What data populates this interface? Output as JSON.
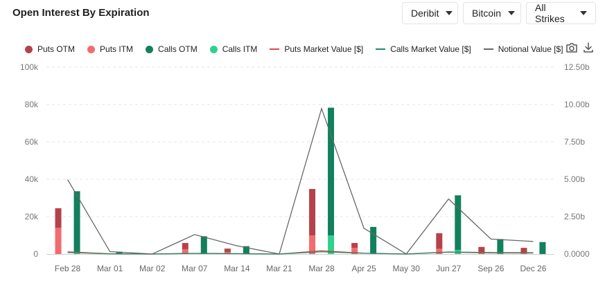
{
  "header": {
    "title": "Open Interest By Expiration",
    "exchange": "Deribit",
    "asset": "Bitcoin",
    "strikes": "All Strikes"
  },
  "toolbar": {
    "camera_icon": "camera-icon",
    "download_icon": "download-icon"
  },
  "colors": {
    "puts_otm": "#b5424b",
    "puts_itm": "#f36b6e",
    "calls_otm": "#12805c",
    "calls_itm": "#2fd18f",
    "puts_mv": "#d94a4a",
    "calls_mv": "#1f8a66",
    "notional": "#666666"
  },
  "legend": {
    "puts_otm": "Puts OTM",
    "puts_itm": "Puts ITM",
    "calls_otm": "Calls OTM",
    "calls_itm": "Calls ITM",
    "puts_mv": "Puts Market Value [$]",
    "calls_mv": "Calls Market Value [$]",
    "notional": "Notional Value [$]"
  },
  "chart_data": {
    "type": "bar",
    "categories": [
      "Feb 28",
      "Mar 01",
      "Mar 02",
      "Mar 07",
      "Mar 14",
      "Mar 21",
      "Mar 28",
      "Apr 25",
      "May 30",
      "Jun 27",
      "Sep 26",
      "Dec 26"
    ],
    "series": [
      {
        "name": "Puts OTM",
        "stack": "puts",
        "values": [
          10500,
          300,
          0,
          3300,
          1900,
          0,
          24800,
          2600,
          0,
          8300,
          2700,
          2500
        ]
      },
      {
        "name": "Puts ITM",
        "stack": "puts",
        "values": [
          14000,
          200,
          0,
          2600,
          1000,
          0,
          10000,
          3300,
          0,
          2800,
          1100,
          800
        ]
      },
      {
        "name": "Calls OTM",
        "stack": "calls",
        "values": [
          32800,
          1000,
          0,
          9200,
          4000,
          0,
          68300,
          14300,
          0,
          29300,
          7900,
          6400
        ]
      },
      {
        "name": "Calls ITM",
        "stack": "calls",
        "values": [
          800,
          200,
          0,
          300,
          200,
          0,
          10000,
          200,
          0,
          2100,
          100,
          0
        ]
      }
    ],
    "lines": [
      {
        "name": "Puts Market Value [$]",
        "axis": "right",
        "values": [
          0.15,
          0.02,
          0.0,
          0.05,
          0.03,
          0.0,
          0.22,
          0.06,
          0.0,
          0.12,
          0.07,
          0.06
        ]
      },
      {
        "name": "Calls Market Value [$]",
        "axis": "right",
        "values": [
          0.1,
          0.01,
          0.0,
          0.04,
          0.02,
          0.0,
          0.15,
          0.05,
          0.0,
          0.14,
          0.1,
          0.09
        ]
      },
      {
        "name": "Notional Value [$]",
        "axis": "right",
        "values": [
          4.98,
          0.16,
          0.0,
          1.3,
          0.55,
          0.0,
          9.73,
          1.72,
          0.0,
          3.68,
          1.0,
          0.84
        ]
      }
    ],
    "ylim_left": [
      0,
      100000
    ],
    "ylim_right": [
      0,
      12.5
    ],
    "yticks_left": [
      "0",
      "20k",
      "40k",
      "60k",
      "80k",
      "100k"
    ],
    "yticks_right": [
      "0.0000",
      "2.50b",
      "5.00b",
      "7.50b",
      "10.00b",
      "12.50b"
    ],
    "grid": true,
    "legend_position": "top-left"
  }
}
